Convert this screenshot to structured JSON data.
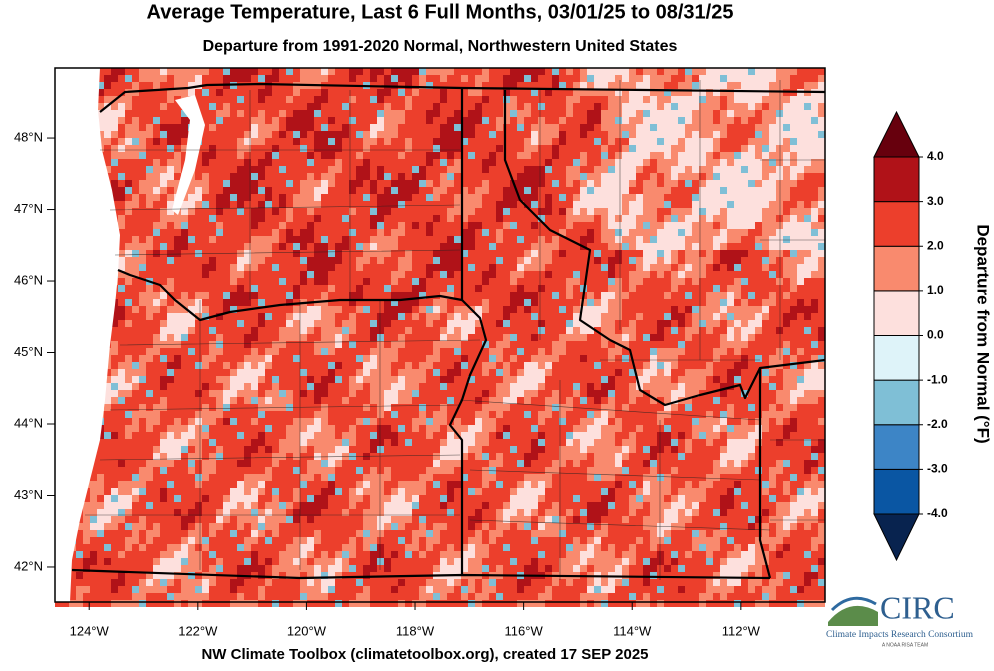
{
  "title": "Average Temperature, Last 6 Full Months, 03/01/25 to 08/31/25",
  "subtitle": "Departure from 1991-2020 Normal, Northwestern United States",
  "map": {
    "xlim": [
      -124.63,
      -110.45
    ],
    "ylim": [
      41.51,
      48.98
    ],
    "xticks": [
      {
        "value": -124,
        "label": "124°W"
      },
      {
        "value": -122,
        "label": "122°W"
      },
      {
        "value": -120,
        "label": "120°W"
      },
      {
        "value": -118,
        "label": "118°W"
      },
      {
        "value": -116,
        "label": "116°W"
      },
      {
        "value": -114,
        "label": "114°W"
      },
      {
        "value": -112,
        "label": "112°W"
      }
    ],
    "yticks": [
      {
        "value": 42,
        "label": "42°N"
      },
      {
        "value": 43,
        "label": "43°N"
      },
      {
        "value": 44,
        "label": "44°N"
      },
      {
        "value": 45,
        "label": "45°N"
      },
      {
        "value": 46,
        "label": "46°N"
      },
      {
        "value": 47,
        "label": "47°N"
      },
      {
        "value": 48,
        "label": "48°N"
      }
    ]
  },
  "colorbar": {
    "title": "Departure from Normal (°F)",
    "lim": [
      -4,
      4
    ],
    "ticks": [
      {
        "value": 4,
        "label": "4.0"
      },
      {
        "value": 3,
        "label": "3.0"
      },
      {
        "value": 2,
        "label": "2.0"
      },
      {
        "value": 1,
        "label": "1.0"
      },
      {
        "value": 0,
        "label": "0.0"
      },
      {
        "value": -1,
        "label": "-1.0"
      },
      {
        "value": -2,
        "label": "-2.0"
      },
      {
        "value": -3,
        "label": "-3.0"
      },
      {
        "value": -4,
        "label": "-4.0"
      }
    ],
    "colors": [
      "#08234f",
      "#0a56a3",
      "#3d85c6",
      "#7fbfd6",
      "#def3f9",
      "#fde0dd",
      "#f98a6e",
      "#ec3f2c",
      "#b01218",
      "#67000d"
    ]
  },
  "footer": "NW Climate Toolbox (climatetoolbox.org), created 17 SEP 2025",
  "logo": {
    "name": "CIRC",
    "full_name": "Climate Impacts Research Consortium",
    "tagline": "A NOAA RISA TEAM"
  }
}
